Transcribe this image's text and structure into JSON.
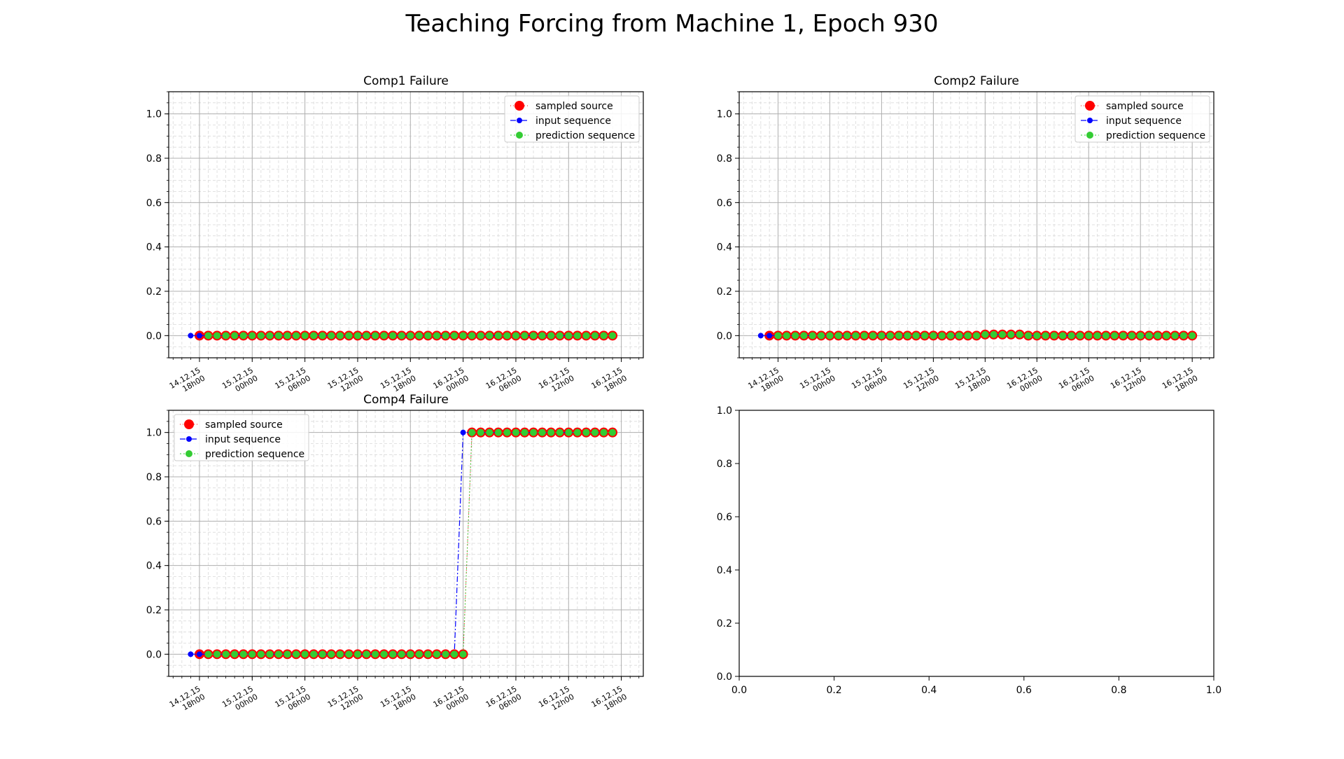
{
  "figure": {
    "title": "Teaching Forcing from Machine 1, Epoch 930"
  },
  "colors": {
    "source": "#ff0000",
    "input": "#0000ff",
    "prediction": "#33cc33",
    "grid": "#b0b0b0"
  },
  "chart_data": [
    {
      "type": "line",
      "title": "Comp1 Failure",
      "xlabel": "",
      "ylabel": "",
      "ylim": [
        -0.1,
        1.1
      ],
      "yticks": [
        "0.0",
        "0.2",
        "0.4",
        "0.6",
        "0.8",
        "1.0"
      ],
      "xticks": [
        {
          "line1": "14.12.15",
          "line2": "18h00"
        },
        {
          "line1": "15.12.15",
          "line2": "00h00"
        },
        {
          "line1": "15.12.15",
          "line2": "06h00"
        },
        {
          "line1": "15.12.15",
          "line2": "12h00"
        },
        {
          "line1": "15.12.15",
          "line2": "18h00"
        },
        {
          "line1": "16.12.15",
          "line2": "00h00"
        },
        {
          "line1": "16.12.15",
          "line2": "06h00"
        },
        {
          "line1": "16.12.15",
          "line2": "12h00"
        },
        {
          "line1": "16.12.15",
          "line2": "18h00"
        }
      ],
      "x_start": "14.12.15 17h00",
      "x_end": "16.12.15 18h00",
      "step_hours": 1,
      "grid": true,
      "legend": "upper right",
      "series": [
        {
          "name": "sampled source",
          "marker": "large",
          "start_index": 1,
          "y": [
            0,
            0,
            0,
            0,
            0,
            0,
            0,
            0,
            0,
            0,
            0,
            0,
            0,
            0,
            0,
            0,
            0,
            0,
            0,
            0,
            0,
            0,
            0,
            0,
            0,
            0,
            0,
            0,
            0,
            0,
            0,
            0,
            0,
            0,
            0,
            0,
            0,
            0,
            0,
            0,
            0,
            0,
            0,
            0,
            0,
            0,
            0,
            0
          ]
        },
        {
          "name": "input sequence",
          "marker": "small",
          "start_index": 0,
          "y": [
            0,
            0,
            0,
            0,
            0,
            0,
            0,
            0,
            0,
            0,
            0,
            0,
            0,
            0,
            0,
            0,
            0,
            0,
            0,
            0,
            0,
            0,
            0,
            0,
            0,
            0,
            0,
            0,
            0,
            0,
            0,
            0,
            0,
            0,
            0,
            0,
            0,
            0,
            0,
            0,
            0,
            0,
            0,
            0,
            0,
            0,
            0,
            0
          ]
        },
        {
          "name": "prediction sequence",
          "marker": "medium",
          "start_index": 2,
          "y": [
            0,
            0,
            0,
            0,
            0,
            0,
            0,
            0,
            0,
            0,
            0,
            0,
            0,
            0,
            0,
            0,
            0,
            0,
            0,
            0,
            0,
            0,
            0,
            0,
            0,
            0,
            0,
            0,
            0,
            0,
            0,
            0,
            0,
            0,
            0,
            0,
            0,
            0,
            0,
            0,
            0,
            0,
            0,
            0,
            0,
            0,
            0
          ]
        }
      ]
    },
    {
      "type": "line",
      "title": "Comp2 Failure",
      "xlabel": "",
      "ylabel": "",
      "ylim": [
        -0.1,
        1.1
      ],
      "yticks": [
        "0.0",
        "0.2",
        "0.4",
        "0.6",
        "0.8",
        "1.0"
      ],
      "xticks": [
        {
          "line1": "14.12.15",
          "line2": "18h00"
        },
        {
          "line1": "15.12.15",
          "line2": "00h00"
        },
        {
          "line1": "15.12.15",
          "line2": "06h00"
        },
        {
          "line1": "15.12.15",
          "line2": "12h00"
        },
        {
          "line1": "15.12.15",
          "line2": "18h00"
        },
        {
          "line1": "16.12.15",
          "line2": "00h00"
        },
        {
          "line1": "16.12.15",
          "line2": "06h00"
        },
        {
          "line1": "16.12.15",
          "line2": "12h00"
        },
        {
          "line1": "16.12.15",
          "line2": "18h00"
        }
      ],
      "x_start": "14.12.15 16h00",
      "x_end": "16.12.15 18h00",
      "step_hours": 1,
      "grid": true,
      "legend": "upper right",
      "series": [
        {
          "name": "sampled source",
          "marker": "large",
          "start_index": 1,
          "y": [
            0,
            0,
            0,
            0,
            0,
            0,
            0,
            0,
            0,
            0,
            0,
            0,
            0,
            0,
            0,
            0,
            0,
            0,
            0,
            0,
            0,
            0,
            0,
            0,
            0,
            0.005,
            0.005,
            0.005,
            0.005,
            0.005,
            0,
            0,
            0,
            0,
            0,
            0,
            0,
            0,
            0,
            0,
            0,
            0,
            0,
            0,
            0,
            0,
            0,
            0,
            0,
            0
          ]
        },
        {
          "name": "input sequence",
          "marker": "small",
          "start_index": 0,
          "y": [
            0,
            0,
            0,
            0,
            0,
            0,
            0,
            0,
            0,
            0,
            0,
            0,
            0,
            0,
            0,
            0,
            0,
            0,
            0,
            0,
            0,
            0,
            0,
            0,
            0,
            0,
            0.005,
            0.005,
            0.005,
            0.005,
            0.005,
            0,
            0,
            0,
            0,
            0,
            0,
            0,
            0,
            0,
            0,
            0,
            0,
            0,
            0,
            0,
            0,
            0,
            0,
            0
          ]
        },
        {
          "name": "prediction sequence",
          "marker": "medium",
          "start_index": 2,
          "y": [
            0,
            0,
            0,
            0,
            0,
            0,
            0,
            0,
            0,
            0,
            0,
            0,
            0,
            0,
            0,
            0,
            0,
            0,
            0,
            0,
            0,
            0,
            0,
            0,
            0.005,
            0.005,
            0.005,
            0.005,
            0.005,
            0,
            0,
            0,
            0,
            0,
            0,
            0,
            0,
            0,
            0,
            0,
            0,
            0,
            0,
            0,
            0,
            0,
            0,
            0,
            0
          ]
        }
      ]
    },
    {
      "type": "line",
      "title": "Comp4 Failure",
      "xlabel": "",
      "ylabel": "",
      "ylim": [
        -0.1,
        1.1
      ],
      "yticks": [
        "0.0",
        "0.2",
        "0.4",
        "0.6",
        "0.8",
        "1.0"
      ],
      "xticks": [
        {
          "line1": "14.12.15",
          "line2": "18h00"
        },
        {
          "line1": "15.12.15",
          "line2": "00h00"
        },
        {
          "line1": "15.12.15",
          "line2": "06h00"
        },
        {
          "line1": "15.12.15",
          "line2": "12h00"
        },
        {
          "line1": "15.12.15",
          "line2": "18h00"
        },
        {
          "line1": "16.12.15",
          "line2": "00h00"
        },
        {
          "line1": "16.12.15",
          "line2": "06h00"
        },
        {
          "line1": "16.12.15",
          "line2": "12h00"
        },
        {
          "line1": "16.12.15",
          "line2": "18h00"
        }
      ],
      "x_start": "14.12.15 17h00",
      "x_end": "16.12.15 18h00",
      "step_hours": 1,
      "grid": true,
      "legend": "upper left",
      "series": [
        {
          "name": "sampled source",
          "marker": "large",
          "start_index": 1,
          "y": [
            0,
            0,
            0,
            0,
            0,
            0,
            0,
            0,
            0,
            0,
            0,
            0,
            0,
            0,
            0,
            0,
            0,
            0,
            0,
            0,
            0,
            0,
            0,
            0,
            0,
            0,
            0,
            0,
            0,
            0,
            0,
            1,
            1,
            1,
            1,
            1,
            1,
            1,
            1,
            1,
            1,
            1,
            1,
            1,
            1,
            1,
            1,
            1
          ]
        },
        {
          "name": "input sequence",
          "marker": "small",
          "start_index": 0,
          "y": [
            0,
            0,
            0,
            0,
            0,
            0,
            0,
            0,
            0,
            0,
            0,
            0,
            0,
            0,
            0,
            0,
            0,
            0,
            0,
            0,
            0,
            0,
            0,
            0,
            0,
            0,
            0,
            0,
            0,
            0,
            0,
            1,
            1,
            1,
            1,
            1,
            1,
            1,
            1,
            1,
            1,
            1,
            1,
            1,
            1,
            1,
            1,
            1
          ]
        },
        {
          "name": "prediction sequence",
          "marker": "medium",
          "start_index": 2,
          "y": [
            0,
            0,
            0,
            0,
            0,
            0,
            0,
            0,
            0,
            0,
            0,
            0,
            0,
            0,
            0,
            0,
            0,
            0,
            0,
            0,
            0,
            0,
            0,
            0,
            0,
            0,
            0,
            0,
            0,
            0,
            1,
            1,
            1,
            1,
            1,
            1,
            1,
            1,
            1,
            1,
            1,
            1,
            1,
            1,
            1,
            1,
            1
          ]
        }
      ]
    },
    {
      "type": "line",
      "title": "",
      "xlim": [
        0,
        1
      ],
      "ylim": [
        0,
        1
      ],
      "xticks": [
        "0.0",
        "0.2",
        "0.4",
        "0.6",
        "0.8",
        "1.0"
      ],
      "yticks": [
        "0.0",
        "0.2",
        "0.4",
        "0.6",
        "0.8",
        "1.0"
      ],
      "grid": false,
      "empty": true,
      "series": []
    }
  ]
}
